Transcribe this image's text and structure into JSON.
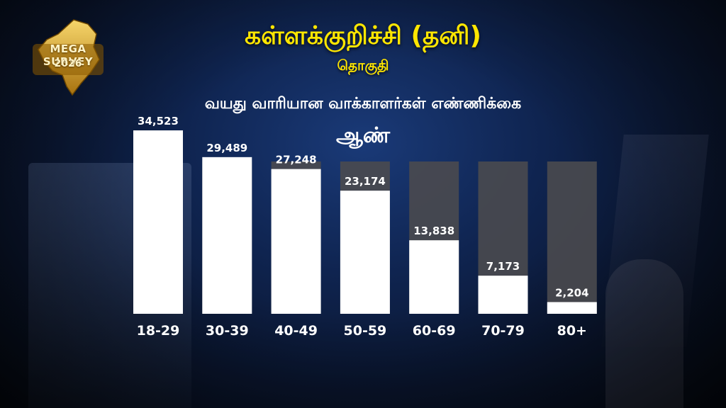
{
  "logo": {
    "line1": "MEGA SURVEY",
    "line2": "2026",
    "gold": "#d9a520"
  },
  "header": {
    "title": "கள்ளக்குறிச்சி (தனி)",
    "subtitle": "தொகுதி"
  },
  "colors": {
    "title": "#ffe600",
    "bar_fill": "#ffffff",
    "bar_track": "#4a4a4f"
  },
  "chart_data": {
    "type": "bar",
    "title": "வயது வாரியான வாக்காளர்கள் எண்ணிக்கை",
    "subtitle": "ஆண்",
    "categories": [
      "18-29",
      "30-39",
      "40-49",
      "50-59",
      "60-69",
      "70-79",
      "80+"
    ],
    "values": [
      34523,
      29489,
      27248,
      23174,
      13838,
      7173,
      2204
    ],
    "value_labels": [
      "34,523",
      "29,489",
      "27,248",
      "23,174",
      "13,838",
      "7,173",
      "2,204"
    ],
    "ylim": [
      0,
      40000
    ],
    "grid": false,
    "legend": "none"
  }
}
